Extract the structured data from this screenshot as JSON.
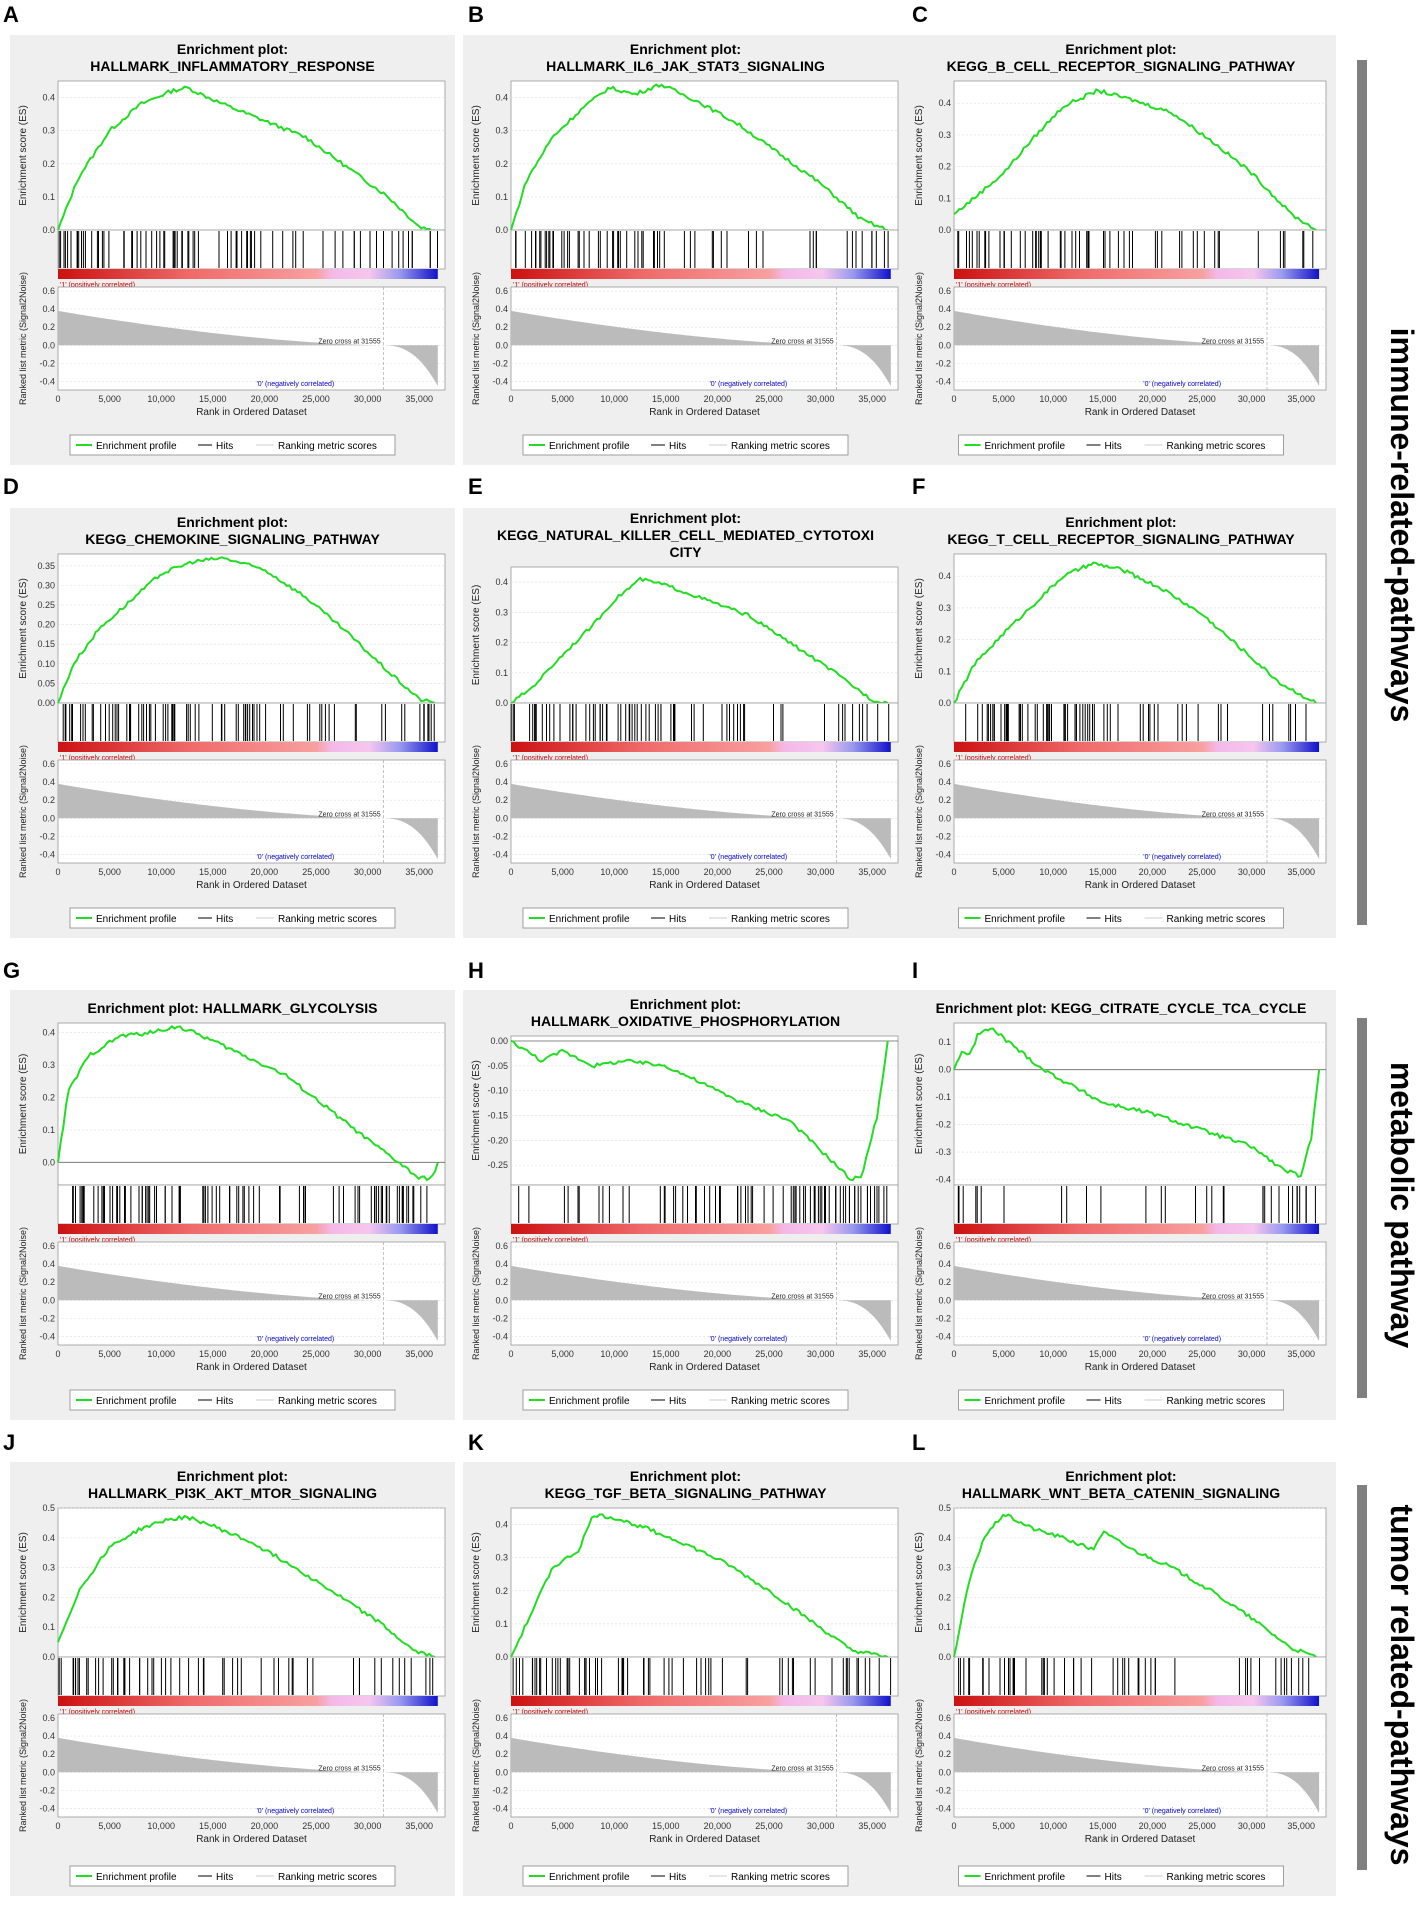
{
  "common": {
    "plot_title_prefix": "Enrichment plot:",
    "y_label_es": "Enrichment score (ES)",
    "y_label_metric": "Ranked list metric (Signal2Noise)",
    "x_label": "Rank in Ordered Dataset",
    "pos_label": "'1' (positively correlated)",
    "neg_label": "'0' (negatively correlated)",
    "zero_cross": "Zero cross at 31555",
    "legend": [
      "Enrichment profile",
      "Hits",
      "Ranking metric scores"
    ],
    "x_ticks": [
      "0",
      "5,000",
      "10,000",
      "15,000",
      "20,000",
      "25,000",
      "30,000",
      "35,000"
    ],
    "metric_ticks": [
      "0.6",
      "0.4",
      "0.2",
      "0.0",
      "-0.2",
      "-0.4"
    ],
    "colors": {
      "profile": "#22dd22",
      "hits": "#000000",
      "metric": "#bbbbbb",
      "frame": "#eeeeee",
      "pos": "#cc0000",
      "neg": "#0000cc"
    }
  },
  "groups": [
    {
      "label": "immune-related-pathways"
    },
    {
      "label": "metabolic pathway"
    },
    {
      "label": "tumor related-pathways"
    }
  ],
  "chart_data": [
    {
      "type": "line",
      "panel": "A",
      "title": "HALLMARK_INFLAMMATORY_RESPONSE",
      "title_lines": [
        "Enrichment plot:",
        "HALLMARK_INFLAMMATORY_RESPONSE"
      ],
      "ylabel": "Enrichment score (ES)",
      "xlabel": "Rank in Ordered Dataset",
      "xlim": [
        0,
        37500
      ],
      "ylim": [
        0,
        0.45
      ],
      "y_ticks": [
        "0.4",
        "0.3",
        "0.2",
        "0.1",
        "0.0"
      ],
      "x": [
        0,
        2000,
        5000,
        8000,
        11000,
        12500,
        16000,
        20000,
        24000,
        28000,
        32000,
        35000,
        36500
      ],
      "es": [
        0.0,
        0.16,
        0.3,
        0.38,
        0.42,
        0.43,
        0.38,
        0.33,
        0.28,
        0.19,
        0.1,
        0.01,
        0.0
      ],
      "hit_density": [
        0.8,
        0.8,
        0.6,
        0.4,
        0.3,
        0.5
      ]
    },
    {
      "type": "line",
      "panel": "B",
      "title": "HALLMARK_IL6_JAK_STAT3_SIGNALING",
      "title_lines": [
        "Enrichment plot:",
        "HALLMARK_IL6_JAK_STAT3_SIGNALING"
      ],
      "ylabel": "Enrichment score (ES)",
      "xlabel": "Rank in Ordered Dataset",
      "xlim": [
        0,
        37500
      ],
      "ylim": [
        0,
        0.45
      ],
      "y_ticks": [
        "0.4",
        "0.3",
        "0.2",
        "0.1",
        "0.0"
      ],
      "x": [
        0,
        1500,
        4000,
        7000,
        9500,
        12000,
        14500,
        18000,
        22000,
        26000,
        30000,
        34000,
        36500
      ],
      "es": [
        0.0,
        0.15,
        0.28,
        0.37,
        0.43,
        0.41,
        0.44,
        0.39,
        0.32,
        0.23,
        0.14,
        0.03,
        0.0
      ],
      "hit_density": [
        0.8,
        0.7,
        0.5,
        0.3,
        0.2,
        0.4
      ]
    },
    {
      "type": "line",
      "panel": "C",
      "title": "KEGG_B_CELL_RECEPTOR_SIGNALING_PATHWAY",
      "title_lines": [
        "Enrichment plot:",
        "KEGG_B_CELL_RECEPTOR_SIGNALING_PATHWAY"
      ],
      "ylabel": "Enrichment score (ES)",
      "xlabel": "Rank in Ordered Dataset",
      "xlim": [
        0,
        37500
      ],
      "ylim": [
        0,
        0.47
      ],
      "y_ticks": [
        "0.4",
        "0.3",
        "0.2",
        "0.1",
        "0.0"
      ],
      "x": [
        0,
        2000,
        5000,
        8000,
        11000,
        14500,
        18000,
        22000,
        26000,
        30000,
        34000,
        36500
      ],
      "es": [
        0.05,
        0.1,
        0.18,
        0.29,
        0.39,
        0.44,
        0.41,
        0.37,
        0.28,
        0.18,
        0.05,
        0.0
      ],
      "hit_density": [
        0.7,
        0.7,
        0.5,
        0.3,
        0.2,
        0.3
      ]
    },
    {
      "type": "line",
      "panel": "D",
      "title": "KEGG_CHEMOKINE_SIGNALING_PATHWAY",
      "title_lines": [
        "Enrichment plot:",
        "KEGG_CHEMOKINE_SIGNALING_PATHWAY"
      ],
      "ylabel": "Enrichment score (ES)",
      "xlabel": "Rank in Ordered Dataset",
      "xlim": [
        0,
        37500
      ],
      "ylim": [
        0,
        0.38
      ],
      "y_ticks": [
        "0.35",
        "0.30",
        "0.25",
        "0.20",
        "0.15",
        "0.10",
        "0.05",
        "0.00"
      ],
      "x": [
        0,
        1500,
        4000,
        7000,
        10000,
        13000,
        16000,
        20000,
        24000,
        28000,
        32000,
        35000,
        36500
      ],
      "es": [
        0.0,
        0.1,
        0.19,
        0.26,
        0.33,
        0.36,
        0.37,
        0.34,
        0.27,
        0.18,
        0.08,
        0.01,
        0.0
      ],
      "hit_density": [
        0.9,
        0.9,
        0.7,
        0.5,
        0.3,
        0.5
      ]
    },
    {
      "type": "line",
      "panel": "E",
      "title": "KEGG_NATURAL_KILLER_CELL_MEDIATED_CYTOTOXICITY",
      "title_lines": [
        "Enrichment plot:",
        "KEGG_NATURAL_KILLER_CELL_MEDIATED_CYTOTOXI",
        "CITY"
      ],
      "ylabel": "Enrichment score (ES)",
      "xlabel": "Rank in Ordered Dataset",
      "xlim": [
        0,
        37500
      ],
      "ylim": [
        0,
        0.45
      ],
      "y_ticks": [
        "0.4",
        "0.3",
        "0.2",
        "0.1",
        "0.0"
      ],
      "x": [
        0,
        2000,
        5000,
        8000,
        10000,
        12500,
        15000,
        19000,
        23000,
        27000,
        31000,
        35000,
        36500
      ],
      "es": [
        0.0,
        0.05,
        0.16,
        0.26,
        0.34,
        0.41,
        0.39,
        0.34,
        0.29,
        0.2,
        0.11,
        0.01,
        0.0
      ],
      "hit_density": [
        0.8,
        0.8,
        0.6,
        0.4,
        0.2,
        0.4
      ]
    },
    {
      "type": "line",
      "panel": "F",
      "title": "KEGG_T_CELL_RECEPTOR_SIGNALING_PATHWAY",
      "title_lines": [
        "Enrichment plot:",
        "KEGG_T_CELL_RECEPTOR_SIGNALING_PATHWAY"
      ],
      "ylabel": "Enrichment score (ES)",
      "xlabel": "Rank in Ordered Dataset",
      "xlim": [
        0,
        37500
      ],
      "ylim": [
        0,
        0.47
      ],
      "y_ticks": [
        "0.4",
        "0.3",
        "0.2",
        "0.1",
        "0.0"
      ],
      "x": [
        0,
        2000,
        5000,
        8000,
        11000,
        14000,
        17000,
        21000,
        25000,
        29000,
        33000,
        36500
      ],
      "es": [
        0.0,
        0.12,
        0.22,
        0.31,
        0.4,
        0.44,
        0.42,
        0.36,
        0.28,
        0.17,
        0.06,
        0.0
      ],
      "hit_density": [
        0.8,
        0.8,
        0.6,
        0.4,
        0.2,
        0.3
      ]
    },
    {
      "type": "line",
      "panel": "G",
      "title": "HALLMARK_GLYCOLYSIS",
      "title_lines": [
        "Enrichment plot: HALLMARK_GLYCOLYSIS"
      ],
      "ylabel": "Enrichment score (ES)",
      "xlabel": "Rank in Ordered Dataset",
      "xlim": [
        0,
        37500
      ],
      "ylim": [
        -0.07,
        0.43
      ],
      "y_ticks": [
        "0.4",
        "0.3",
        "0.2",
        "0.1",
        "0.0"
      ],
      "x": [
        0,
        1000,
        3000,
        6000,
        9000,
        11500,
        14000,
        18000,
        22000,
        26000,
        30000,
        33000,
        35000,
        36200,
        36800
      ],
      "es": [
        0.0,
        0.22,
        0.33,
        0.39,
        0.4,
        0.42,
        0.39,
        0.33,
        0.27,
        0.17,
        0.07,
        0.0,
        -0.05,
        -0.05,
        0.0
      ],
      "hit_density": [
        0.9,
        0.8,
        0.6,
        0.4,
        0.3,
        0.9
      ]
    },
    {
      "type": "line",
      "panel": "H",
      "title": "HALLMARK_OXIDATIVE_PHOSPHORYLATION",
      "title_lines": [
        "Enrichment plot:",
        "HALLMARK_OXIDATIVE_PHOSPHORYLATION"
      ],
      "ylabel": "Enrichment score (ES)",
      "xlabel": "Rank in Ordered Dataset",
      "xlim": [
        0,
        37500
      ],
      "ylim": [
        -0.29,
        0.01
      ],
      "y_ticks": [
        "0.00",
        "-0.05",
        "-0.10",
        "-0.15",
        "-0.20",
        "-0.25"
      ],
      "x": [
        0,
        1500,
        3000,
        5000,
        8000,
        11000,
        15000,
        19000,
        23000,
        27000,
        30000,
        33000,
        34000,
        35500,
        36500
      ],
      "es": [
        0.0,
        -0.02,
        -0.04,
        -0.02,
        -0.05,
        -0.04,
        -0.05,
        -0.09,
        -0.13,
        -0.16,
        -0.22,
        -0.28,
        -0.27,
        -0.15,
        0.0
      ],
      "hit_density": [
        0.2,
        0.3,
        0.4,
        0.6,
        0.8,
        0.9
      ]
    },
    {
      "type": "line",
      "panel": "I",
      "title": "KEGG_CITRATE_CYCLE_TCA_CYCLE",
      "title_lines": [
        "Enrichment plot: KEGG_CITRATE_CYCLE_TCA_CYCLE"
      ],
      "ylabel": "Enrichment score (ES)",
      "xlabel": "Rank in Ordered Dataset",
      "xlim": [
        0,
        37500
      ],
      "ylim": [
        -0.42,
        0.17
      ],
      "y_ticks": [
        "0.1",
        "0.0",
        "-0.1",
        "-0.2",
        "-0.3",
        "-0.4"
      ],
      "x": [
        0,
        800,
        1600,
        2400,
        3800,
        9000,
        15000,
        20000,
        25000,
        30000,
        33000,
        35000,
        36000,
        36800
      ],
      "es": [
        0.0,
        0.07,
        0.05,
        0.13,
        0.15,
        0.0,
        -0.12,
        -0.16,
        -0.22,
        -0.28,
        -0.36,
        -0.39,
        -0.25,
        0.0
      ],
      "hit_density": [
        0.3,
        0.1,
        0.1,
        0.2,
        0.2,
        0.6
      ]
    },
    {
      "type": "line",
      "panel": "J",
      "title": "HALLMARK_PI3K_AKT_MTOR_SIGNALING",
      "title_lines": [
        "Enrichment plot:",
        "HALLMARK_PI3K_AKT_MTOR_SIGNALING"
      ],
      "ylabel": "Enrichment score (ES)",
      "xlabel": "Rank in Ordered Dataset",
      "xlim": [
        0,
        37500
      ],
      "ylim": [
        0,
        0.5
      ],
      "y_ticks": [
        "0.5",
        "0.4",
        "0.3",
        "0.2",
        "0.1",
        "0.0"
      ],
      "x": [
        0,
        2000,
        5000,
        8000,
        10500,
        12500,
        15000,
        19000,
        23000,
        27000,
        31000,
        34500,
        36500
      ],
      "es": [
        0.05,
        0.22,
        0.37,
        0.43,
        0.46,
        0.47,
        0.44,
        0.38,
        0.3,
        0.21,
        0.12,
        0.02,
        0.0
      ],
      "hit_density": [
        0.8,
        0.6,
        0.5,
        0.3,
        0.2,
        0.4
      ]
    },
    {
      "type": "line",
      "panel": "K",
      "title": "KEGG_TGF_BETA_SIGNALING_PATHWAY",
      "title_lines": [
        "Enrichment plot:",
        "KEGG_TGF_BETA_SIGNALING_PATHWAY"
      ],
      "ylabel": "Enrichment score (ES)",
      "xlabel": "Rank in Ordered Dataset",
      "xlim": [
        0,
        37500
      ],
      "ylim": [
        0,
        0.45
      ],
      "y_ticks": [
        "0.4",
        "0.3",
        "0.2",
        "0.1",
        "0.0"
      ],
      "x": [
        0,
        1500,
        4000,
        6500,
        8000,
        10000,
        13000,
        17000,
        21000,
        25000,
        29000,
        33000,
        36500
      ],
      "es": [
        0.0,
        0.1,
        0.27,
        0.32,
        0.43,
        0.42,
        0.39,
        0.34,
        0.28,
        0.2,
        0.11,
        0.02,
        0.0
      ],
      "hit_density": [
        0.8,
        0.7,
        0.4,
        0.3,
        0.3,
        0.5
      ]
    },
    {
      "type": "line",
      "panel": "L",
      "title": "HALLMARK_WNT_BETA_CATENIN_SIGNALING",
      "title_lines": [
        "Enrichment plot:",
        "HALLMARK_WNT_BETA_CATENIN_SIGNALING"
      ],
      "ylabel": "Enrichment score (ES)",
      "xlabel": "Rank in Ordered Dataset",
      "xlim": [
        0,
        37500
      ],
      "ylim": [
        0,
        0.5
      ],
      "y_ticks": [
        "0.5",
        "0.4",
        "0.3",
        "0.2",
        "0.1",
        "0.0"
      ],
      "x": [
        0,
        1500,
        3000,
        5000,
        8000,
        11000,
        14000,
        15000,
        18000,
        22000,
        26000,
        30000,
        34000,
        36500
      ],
      "es": [
        0.0,
        0.25,
        0.4,
        0.48,
        0.43,
        0.4,
        0.36,
        0.42,
        0.36,
        0.3,
        0.22,
        0.13,
        0.03,
        0.0
      ],
      "hit_density": [
        0.7,
        0.4,
        0.3,
        0.3,
        0.2,
        0.4
      ]
    }
  ]
}
